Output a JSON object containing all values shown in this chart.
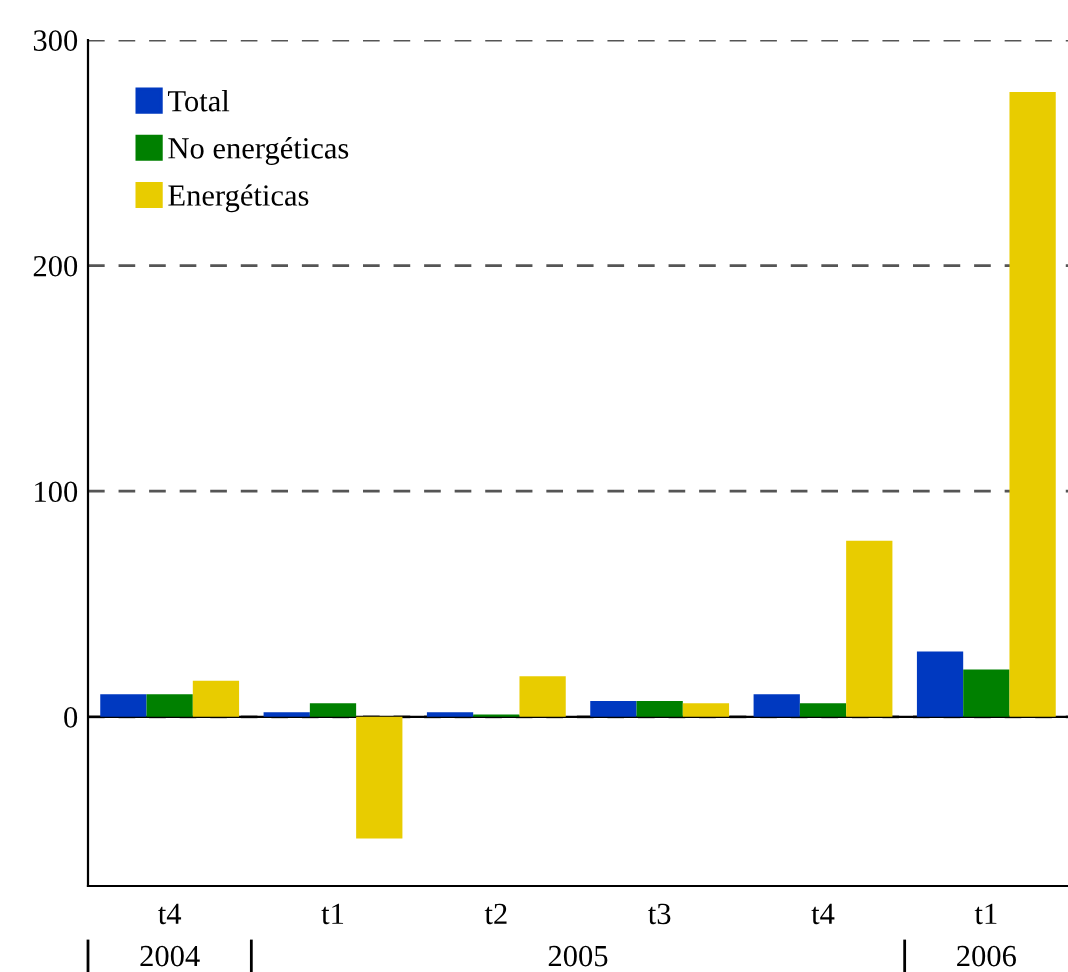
{
  "chart_data": {
    "type": "bar",
    "categories": [
      "t4",
      "t1",
      "t2",
      "t3",
      "t4",
      "t1"
    ],
    "series": [
      {
        "name": "Total",
        "color": "#0039c0",
        "values": [
          10,
          2,
          2,
          7,
          10,
          29
        ]
      },
      {
        "name": "No energéticas",
        "color": "#008000",
        "values": [
          10,
          6,
          1,
          7,
          6,
          21
        ]
      },
      {
        "name": "Energéticas",
        "color": "#e8cc00",
        "values": [
          16,
          -54,
          18,
          6,
          78,
          277
        ]
      }
    ],
    "ylim": [
      -75,
      300
    ],
    "yticks": [
      0,
      100,
      200,
      300
    ],
    "grid": "y",
    "legend": "top left",
    "annotations": [
      "2004",
      "2005",
      "2006"
    ]
  }
}
